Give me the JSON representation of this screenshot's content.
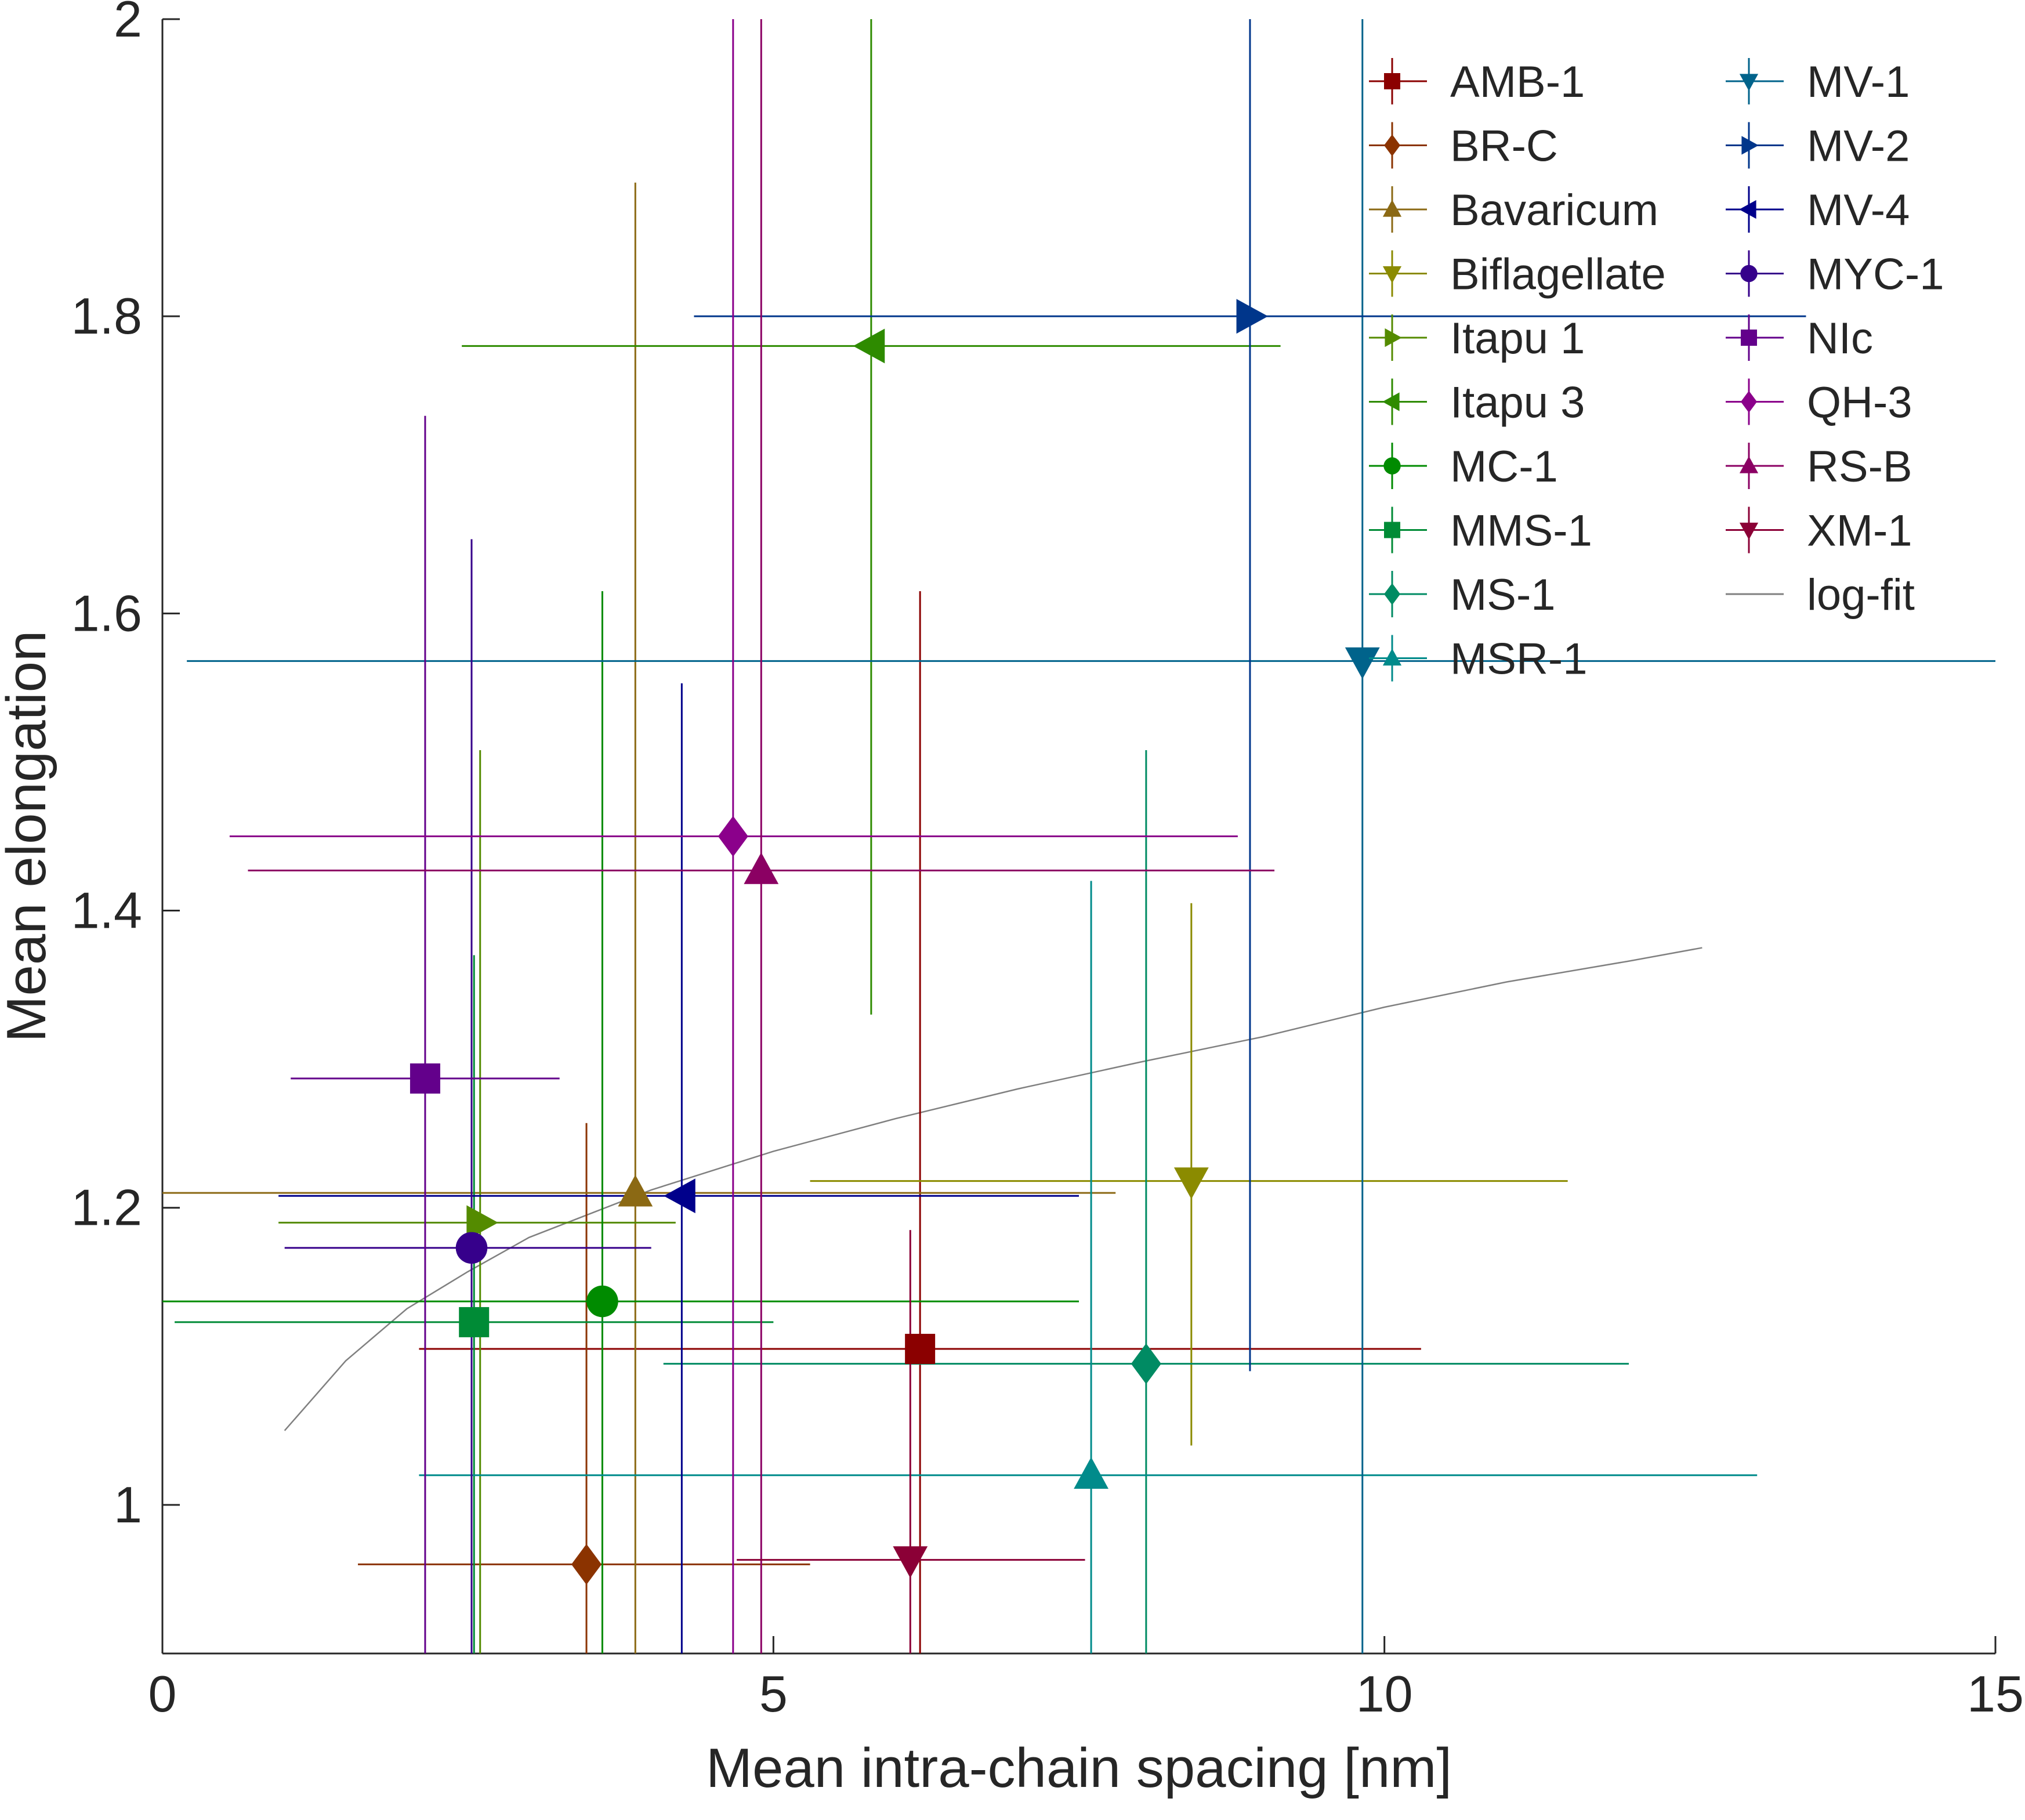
{
  "chart_data": {
    "type": "scatter",
    "xlabel": "Mean intra-chain spacing [nm]",
    "ylabel": "Mean elongation",
    "xlim": [
      0,
      15
    ],
    "ylim": [
      0.9,
      2.0
    ],
    "xticks": [
      0,
      5,
      10,
      15
    ],
    "xtick_labels": [
      "0",
      "5",
      "10",
      "15"
    ],
    "yticks": [
      1.0,
      1.2,
      1.4,
      1.6,
      1.8,
      2.0
    ],
    "ytick_labels": [
      "1",
      "1.2",
      "1.4",
      "1.6",
      "1.8",
      "2"
    ],
    "grid": false,
    "legend_position": "top-right",
    "legend_columns": 2,
    "series": [
      {
        "name": "AMB-1",
        "marker": "square",
        "color": "#8b0000",
        "x": 6.2,
        "y": 1.105,
        "x_err": [
          2.1,
          10.3
        ],
        "y_err": [
          0.9,
          1.615
        ]
      },
      {
        "name": "BR-C",
        "marker": "diamond",
        "color": "#8b3300",
        "x": 3.47,
        "y": 0.96,
        "x_err": [
          1.6,
          5.3
        ],
        "y_err": [
          0.9,
          1.257
        ]
      },
      {
        "name": "Bavaricum",
        "marker": "triangle-up",
        "color": "#8b6914",
        "x": 3.87,
        "y": 1.21,
        "x_err": [
          0.0,
          7.8
        ],
        "y_err": [
          0.9,
          1.89
        ]
      },
      {
        "name": "Biflagellate",
        "marker": "triangle-down",
        "color": "#8b8b00",
        "x": 8.42,
        "y": 1.218,
        "x_err": [
          5.3,
          11.5
        ],
        "y_err": [
          1.04,
          1.405
        ]
      },
      {
        "name": "Itapu 1",
        "marker": "triangle-right",
        "color": "#548b00",
        "x": 2.6,
        "y": 1.19,
        "x_err": [
          0.95,
          4.2
        ],
        "y_err": [
          0.9,
          1.508
        ]
      },
      {
        "name": "Itapu 3",
        "marker": "triangle-left",
        "color": "#2e8b00",
        "x": 5.8,
        "y": 1.78,
        "x_err": [
          2.45,
          9.15
        ],
        "y_err": [
          1.33,
          2.0
        ]
      },
      {
        "name": "MC-1",
        "marker": "circle",
        "color": "#008b00",
        "x": 3.6,
        "y": 1.137,
        "x_err": [
          0.0,
          7.5
        ],
        "y_err": [
          0.9,
          1.615
        ]
      },
      {
        "name": "MMS-1",
        "marker": "square",
        "color": "#008b36",
        "x": 2.55,
        "y": 1.123,
        "x_err": [
          0.1,
          5.0
        ],
        "y_err": [
          0.9,
          1.37
        ]
      },
      {
        "name": "MS-1",
        "marker": "diamond",
        "color": "#008b63",
        "x": 8.05,
        "y": 1.095,
        "x_err": [
          4.1,
          12.0
        ],
        "y_err": [
          0.9,
          1.508
        ]
      },
      {
        "name": "MSR-1",
        "marker": "triangle-up",
        "color": "#008b8b",
        "x": 7.6,
        "y": 1.02,
        "x_err": [
          2.1,
          13.05
        ],
        "y_err": [
          0.9,
          1.42
        ]
      },
      {
        "name": "MV-1",
        "marker": "triangle-down",
        "color": "#00638b",
        "x": 9.82,
        "y": 1.568,
        "x_err": [
          0.2,
          15.0
        ],
        "y_err": [
          0.9,
          2.0
        ]
      },
      {
        "name": "MV-2",
        "marker": "triangle-right",
        "color": "#00368b",
        "x": 8.9,
        "y": 1.8,
        "x_err": [
          4.35,
          13.45
        ],
        "y_err": [
          1.09,
          2.0
        ]
      },
      {
        "name": "MV-4",
        "marker": "triangle-left",
        "color": "#00008b",
        "x": 4.25,
        "y": 1.208,
        "x_err": [
          0.95,
          7.5
        ],
        "y_err": [
          0.9,
          1.553
        ]
      },
      {
        "name": "MYC-1",
        "marker": "circle",
        "color": "#36008b",
        "x": 2.53,
        "y": 1.173,
        "x_err": [
          1.0,
          4.0
        ],
        "y_err": [
          0.9,
          1.65
        ]
      },
      {
        "name": "NIc",
        "marker": "square",
        "color": "#63008b",
        "x": 2.15,
        "y": 1.287,
        "x_err": [
          1.05,
          3.25
        ],
        "y_err": [
          0.9,
          1.733
        ]
      },
      {
        "name": "QH-3",
        "marker": "diamond",
        "color": "#8b008b",
        "x": 4.67,
        "y": 1.45,
        "x_err": [
          0.55,
          8.8
        ],
        "y_err": [
          0.9,
          2.0
        ]
      },
      {
        "name": "RS-B",
        "marker": "triangle-up",
        "color": "#8b0063",
        "x": 4.9,
        "y": 1.427,
        "x_err": [
          0.7,
          9.1
        ],
        "y_err": [
          0.9,
          2.0
        ]
      },
      {
        "name": "XM-1",
        "marker": "triangle-down",
        "color": "#8b0036",
        "x": 6.12,
        "y": 0.963,
        "x_err": [
          4.7,
          7.55
        ],
        "y_err": [
          0.9,
          1.185
        ]
      }
    ],
    "fit": {
      "name": "log-fit",
      "color": "#808080",
      "x": [
        1.0,
        1.5,
        2.0,
        2.5,
        3.0,
        4.0,
        5.0,
        6.0,
        7.0,
        8.0,
        9.0,
        10.0,
        11.0,
        12.0,
        12.6
      ],
      "y": [
        1.05,
        1.097,
        1.132,
        1.157,
        1.18,
        1.212,
        1.238,
        1.26,
        1.28,
        1.298,
        1.315,
        1.335,
        1.352,
        1.366,
        1.375
      ]
    }
  }
}
